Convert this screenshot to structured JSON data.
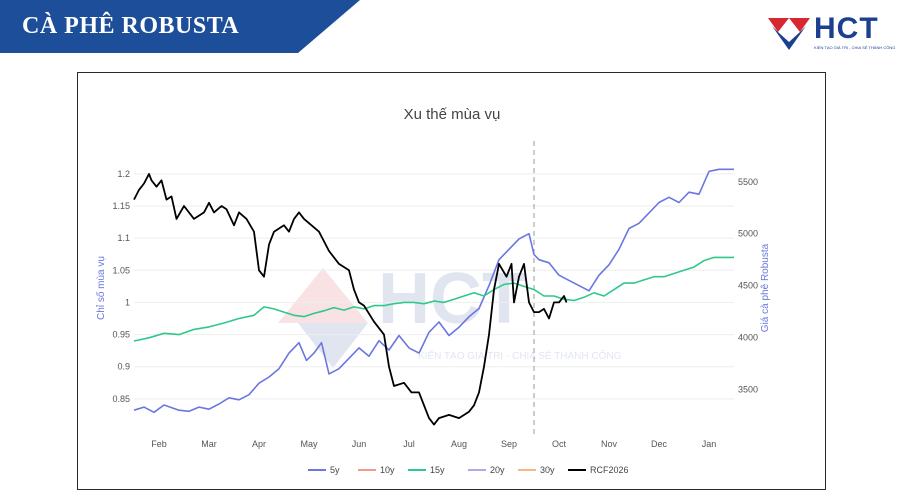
{
  "header": {
    "title": "CÀ PHÊ ROBUSTA",
    "banner_color": "#1d4e9a"
  },
  "logo": {
    "text": "HCT",
    "tagline": "KIẾN TẠO GIÁ TRỊ - CHIA SẺ THÀNH CÔNG",
    "colors": {
      "blue": "#1d3f8f",
      "red": "#d7282f"
    }
  },
  "watermark": {
    "text": "HCT",
    "tagline": "KIẾN TẠO GIÁ TRỊ - CHIA SẺ THÀNH CÔNG"
  },
  "chart_data": {
    "type": "line",
    "title": "Xu thế mùa vụ",
    "ylabel_left": "Chỉ số mùa vụ",
    "ylabel_right": "Giá cà phê Robusta",
    "x_ticks": [
      "Feb",
      "Mar",
      "Apr",
      "May",
      "Jun",
      "Jul",
      "Aug",
      "Sep",
      "Oct",
      "Nov",
      "Dec",
      "Jan"
    ],
    "y_left_ticks": [
      "0.85",
      "0.9",
      "0.95",
      "1",
      "1.05",
      "1.1",
      "1.15",
      "1.2"
    ],
    "y_left_range": [
      0.8,
      1.22
    ],
    "y_right_ticks": [
      "3500",
      "4000",
      "4500",
      "5000",
      "5500"
    ],
    "y_right_range": [
      3100,
      5700
    ],
    "x_range": [
      0,
      12
    ],
    "current_marker_x": 8.0,
    "legend_position": "bottom",
    "grid": "horizontal",
    "series": [
      {
        "name": "5y",
        "axis": "right",
        "color": "#6b76e0",
        "points": [
          [
            0,
            3300
          ],
          [
            0.2,
            3330
          ],
          [
            0.4,
            3280
          ],
          [
            0.6,
            3350
          ],
          [
            0.9,
            3300
          ],
          [
            1.1,
            3290
          ],
          [
            1.3,
            3330
          ],
          [
            1.5,
            3310
          ],
          [
            1.7,
            3360
          ],
          [
            1.9,
            3420
          ],
          [
            2.1,
            3400
          ],
          [
            2.3,
            3450
          ],
          [
            2.5,
            3560
          ],
          [
            2.7,
            3620
          ],
          [
            2.9,
            3700
          ],
          [
            3.1,
            3850
          ],
          [
            3.3,
            3950
          ],
          [
            3.45,
            3780
          ],
          [
            3.6,
            3850
          ],
          [
            3.75,
            3950
          ],
          [
            3.9,
            3650
          ],
          [
            4.1,
            3700
          ],
          [
            4.3,
            3800
          ],
          [
            4.5,
            3900
          ],
          [
            4.7,
            3820
          ],
          [
            4.9,
            3970
          ],
          [
            5.1,
            3880
          ],
          [
            5.3,
            4020
          ],
          [
            5.5,
            3900
          ],
          [
            5.7,
            3850
          ],
          [
            5.9,
            4050
          ],
          [
            6.1,
            4150
          ],
          [
            6.3,
            4020
          ],
          [
            6.5,
            4100
          ],
          [
            6.7,
            4200
          ],
          [
            6.9,
            4280
          ],
          [
            7.1,
            4500
          ],
          [
            7.3,
            4750
          ],
          [
            7.5,
            4850
          ],
          [
            7.7,
            4950
          ],
          [
            7.9,
            5000
          ],
          [
            8.0,
            4800
          ],
          [
            8.1,
            4750
          ],
          [
            8.3,
            4720
          ],
          [
            8.5,
            4600
          ],
          [
            8.7,
            4550
          ],
          [
            8.9,
            4500
          ],
          [
            9.1,
            4450
          ],
          [
            9.3,
            4600
          ],
          [
            9.5,
            4700
          ],
          [
            9.7,
            4850
          ],
          [
            9.9,
            5050
          ],
          [
            10.1,
            5100
          ],
          [
            10.3,
            5200
          ],
          [
            10.5,
            5300
          ],
          [
            10.7,
            5350
          ],
          [
            10.9,
            5300
          ],
          [
            11.1,
            5400
          ],
          [
            11.3,
            5380
          ],
          [
            11.5,
            5600
          ],
          [
            11.7,
            5620
          ],
          [
            12,
            5620
          ]
        ]
      },
      {
        "name": "10y",
        "axis": "left",
        "color": "#f4978e",
        "points": []
      },
      {
        "name": "15y",
        "axis": "left",
        "color": "#2ec98a",
        "points": [
          [
            0,
            0.94
          ],
          [
            0.3,
            0.945
          ],
          [
            0.6,
            0.952
          ],
          [
            0.9,
            0.95
          ],
          [
            1.2,
            0.958
          ],
          [
            1.5,
            0.962
          ],
          [
            1.8,
            0.968
          ],
          [
            2.1,
            0.975
          ],
          [
            2.4,
            0.98
          ],
          [
            2.6,
            0.993
          ],
          [
            2.8,
            0.99
          ],
          [
            3.0,
            0.985
          ],
          [
            3.2,
            0.98
          ],
          [
            3.4,
            0.978
          ],
          [
            3.6,
            0.983
          ],
          [
            3.8,
            0.987
          ],
          [
            4.0,
            0.992
          ],
          [
            4.2,
            0.988
          ],
          [
            4.4,
            0.993
          ],
          [
            4.6,
            0.99
          ],
          [
            4.8,
            0.995
          ],
          [
            5.0,
            0.995
          ],
          [
            5.2,
            0.998
          ],
          [
            5.4,
            1.0
          ],
          [
            5.6,
            1.0
          ],
          [
            5.8,
            0.998
          ],
          [
            6.0,
            1.002
          ],
          [
            6.2,
            1.0
          ],
          [
            6.4,
            1.005
          ],
          [
            6.6,
            1.01
          ],
          [
            6.8,
            1.015
          ],
          [
            7.0,
            1.01
          ],
          [
            7.2,
            1.02
          ],
          [
            7.4,
            1.028
          ],
          [
            7.6,
            1.03
          ],
          [
            7.8,
            1.025
          ],
          [
            8.0,
            1.02
          ],
          [
            8.2,
            1.01
          ],
          [
            8.4,
            1.01
          ],
          [
            8.6,
            1.005
          ],
          [
            8.8,
            1.003
          ],
          [
            9.0,
            1.008
          ],
          [
            9.2,
            1.015
          ],
          [
            9.4,
            1.01
          ],
          [
            9.6,
            1.02
          ],
          [
            9.8,
            1.03
          ],
          [
            10.0,
            1.03
          ],
          [
            10.2,
            1.035
          ],
          [
            10.4,
            1.04
          ],
          [
            10.6,
            1.04
          ],
          [
            10.8,
            1.045
          ],
          [
            11.0,
            1.05
          ],
          [
            11.2,
            1.055
          ],
          [
            11.4,
            1.065
          ],
          [
            11.6,
            1.07
          ],
          [
            12,
            1.07
          ]
        ]
      },
      {
        "name": "20y",
        "axis": "left",
        "color": "#b9a4e8",
        "points": []
      },
      {
        "name": "30y",
        "axis": "left",
        "color": "#f7b68a",
        "points": []
      },
      {
        "name": "RCF2026",
        "axis": "left",
        "color": "#000000",
        "points": [
          [
            0,
            1.16
          ],
          [
            0.1,
            1.175
          ],
          [
            0.2,
            1.185
          ],
          [
            0.3,
            1.2
          ],
          [
            0.35,
            1.19
          ],
          [
            0.45,
            1.18
          ],
          [
            0.55,
            1.19
          ],
          [
            0.65,
            1.16
          ],
          [
            0.75,
            1.165
          ],
          [
            0.85,
            1.13
          ],
          [
            1.0,
            1.15
          ],
          [
            1.2,
            1.13
          ],
          [
            1.4,
            1.14
          ],
          [
            1.5,
            1.155
          ],
          [
            1.6,
            1.14
          ],
          [
            1.75,
            1.15
          ],
          [
            1.85,
            1.145
          ],
          [
            2.0,
            1.12
          ],
          [
            2.1,
            1.14
          ],
          [
            2.25,
            1.13
          ],
          [
            2.4,
            1.11
          ],
          [
            2.5,
            1.05
          ],
          [
            2.6,
            1.04
          ],
          [
            2.7,
            1.09
          ],
          [
            2.8,
            1.11
          ],
          [
            2.9,
            1.115
          ],
          [
            3.0,
            1.12
          ],
          [
            3.1,
            1.11
          ],
          [
            3.2,
            1.13
          ],
          [
            3.3,
            1.14
          ],
          [
            3.4,
            1.13
          ],
          [
            3.55,
            1.12
          ],
          [
            3.7,
            1.11
          ],
          [
            3.9,
            1.08
          ],
          [
            4.1,
            1.06
          ],
          [
            4.3,
            1.05
          ],
          [
            4.4,
            1.02
          ],
          [
            4.5,
            1.0
          ],
          [
            4.6,
            0.995
          ],
          [
            4.8,
            0.97
          ],
          [
            5.0,
            0.95
          ],
          [
            5.1,
            0.9
          ],
          [
            5.2,
            0.87
          ],
          [
            5.4,
            0.875
          ],
          [
            5.55,
            0.86
          ],
          [
            5.7,
            0.86
          ],
          [
            5.8,
            0.84
          ],
          [
            5.9,
            0.82
          ],
          [
            6.0,
            0.81
          ],
          [
            6.1,
            0.82
          ],
          [
            6.3,
            0.825
          ],
          [
            6.5,
            0.82
          ],
          [
            6.7,
            0.83
          ],
          [
            6.8,
            0.84
          ],
          [
            6.9,
            0.86
          ],
          [
            7.0,
            0.9
          ],
          [
            7.1,
            0.95
          ],
          [
            7.2,
            1.02
          ],
          [
            7.3,
            1.06
          ],
          [
            7.45,
            1.04
          ],
          [
            7.55,
            1.06
          ],
          [
            7.6,
            1.0
          ],
          [
            7.7,
            1.04
          ],
          [
            7.8,
            1.06
          ],
          [
            7.9,
            1.0
          ],
          [
            8.0,
            0.985
          ],
          [
            8.1,
            0.985
          ],
          [
            8.2,
            0.99
          ],
          [
            8.3,
            0.975
          ],
          [
            8.4,
            1.0
          ],
          [
            8.5,
            1.0
          ],
          [
            8.6,
            1.01
          ],
          [
            8.65,
            1.0
          ]
        ]
      }
    ]
  }
}
